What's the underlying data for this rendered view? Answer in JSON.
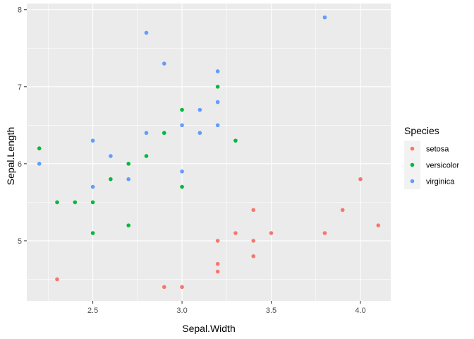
{
  "chart_data": {
    "type": "scatter",
    "xlabel": "Sepal.Width",
    "ylabel": "Sepal.Length",
    "xlim": [
      2.13,
      4.17
    ],
    "ylim": [
      4.22,
      8.08
    ],
    "x_ticks": [
      2.5,
      3.0,
      3.5,
      4.0
    ],
    "x_tick_labels": [
      "2.5",
      "3.0",
      "3.5",
      "4.0"
    ],
    "y_ticks": [
      5,
      6,
      7,
      8
    ],
    "y_tick_labels": [
      "5",
      "6",
      "7",
      "8"
    ],
    "grid": true,
    "legend": {
      "title": "Species",
      "placement": "right"
    },
    "series": [
      {
        "name": "setosa",
        "color": "#F8766D",
        "points": [
          [
            2.3,
            4.5
          ],
          [
            2.9,
            4.4
          ],
          [
            3.0,
            4.4
          ],
          [
            3.2,
            4.6
          ],
          [
            3.2,
            4.7
          ],
          [
            3.2,
            5.0
          ],
          [
            3.3,
            5.1
          ],
          [
            3.4,
            5.4
          ],
          [
            3.4,
            5.0
          ],
          [
            3.4,
            4.8
          ],
          [
            3.5,
            5.1
          ],
          [
            3.8,
            5.1
          ],
          [
            3.9,
            5.4
          ],
          [
            4.0,
            5.8
          ],
          [
            4.1,
            5.2
          ]
        ]
      },
      {
        "name": "versicolor",
        "color": "#00BA38",
        "points": [
          [
            2.2,
            6.2
          ],
          [
            2.3,
            5.5
          ],
          [
            2.4,
            5.5
          ],
          [
            2.5,
            5.5
          ],
          [
            2.5,
            5.1
          ],
          [
            2.6,
            5.8
          ],
          [
            2.7,
            6.0
          ],
          [
            2.7,
            5.2
          ],
          [
            2.8,
            6.1
          ],
          [
            2.9,
            6.4
          ],
          [
            3.0,
            6.7
          ],
          [
            3.0,
            5.7
          ],
          [
            3.2,
            7.0
          ],
          [
            3.3,
            6.3
          ]
        ]
      },
      {
        "name": "virginica",
        "color": "#619CFF",
        "points": [
          [
            2.2,
            6.0
          ],
          [
            2.5,
            6.3
          ],
          [
            2.5,
            5.7
          ],
          [
            2.6,
            6.1
          ],
          [
            2.7,
            5.8
          ],
          [
            2.8,
            7.7
          ],
          [
            2.8,
            6.4
          ],
          [
            2.9,
            7.3
          ],
          [
            3.0,
            6.5
          ],
          [
            3.0,
            5.9
          ],
          [
            3.1,
            6.7
          ],
          [
            3.1,
            6.4
          ],
          [
            3.2,
            7.2
          ],
          [
            3.2,
            6.8
          ],
          [
            3.2,
            6.5
          ],
          [
            3.8,
            7.9
          ]
        ]
      }
    ]
  }
}
